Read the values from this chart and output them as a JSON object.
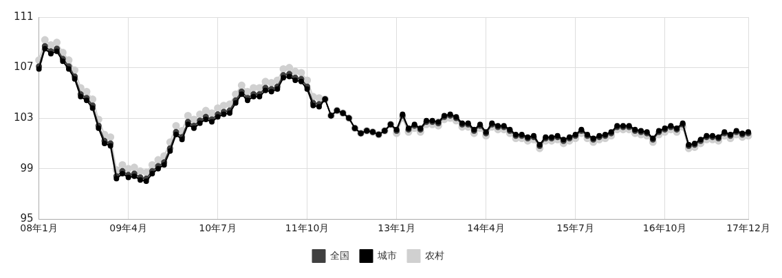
{
  "chart_data": {
    "type": "line",
    "categories": [
      "08年1月",
      null,
      null,
      null,
      null,
      null,
      null,
      null,
      null,
      null,
      null,
      null,
      null,
      null,
      null,
      "09年4月",
      null,
      null,
      null,
      null,
      null,
      null,
      null,
      null,
      null,
      null,
      null,
      null,
      null,
      null,
      "10年7月",
      null,
      null,
      null,
      null,
      null,
      null,
      null,
      null,
      null,
      null,
      null,
      null,
      null,
      null,
      "11年10月",
      null,
      null,
      null,
      null,
      null,
      null,
      null,
      null,
      null,
      null,
      null,
      null,
      null,
      null,
      "13年1月",
      null,
      null,
      null,
      null,
      null,
      null,
      null,
      null,
      null,
      null,
      null,
      null,
      null,
      null,
      "14年4月",
      null,
      null,
      null,
      null,
      null,
      null,
      null,
      null,
      null,
      null,
      null,
      null,
      null,
      null,
      "15年7月",
      null,
      null,
      null,
      null,
      null,
      null,
      null,
      null,
      null,
      null,
      null,
      null,
      null,
      null,
      "16年10月",
      null,
      null,
      null,
      null,
      null,
      null,
      null,
      null,
      null,
      null,
      null,
      null,
      null,
      "17年12月"
    ],
    "series": [
      {
        "name": "全国",
        "color": "#404040",
        "values": [
          107.1,
          108.7,
          108.3,
          108.5,
          107.7,
          107.1,
          106.3,
          104.9,
          104.6,
          104.0,
          102.4,
          101.2,
          101.0,
          98.4,
          98.8,
          98.5,
          98.6,
          98.3,
          98.2,
          98.8,
          99.2,
          99.5,
          100.6,
          101.9,
          101.5,
          102.7,
          102.4,
          102.8,
          103.1,
          102.9,
          103.3,
          103.5,
          103.6,
          104.4,
          105.1,
          104.6,
          104.9,
          104.9,
          105.4,
          105.3,
          105.5,
          106.4,
          106.5,
          106.2,
          106.1,
          105.5,
          104.2,
          104.1,
          104.5,
          103.2,
          103.6,
          103.4,
          103.0,
          102.2,
          101.8,
          102.0,
          101.9,
          101.7,
          102.0,
          102.5,
          102.0,
          103.2,
          102.1,
          102.4,
          102.1,
          102.7,
          102.7,
          102.6,
          103.1,
          103.2,
          103.0,
          102.5,
          102.5,
          102.0,
          102.4,
          101.8,
          102.5,
          102.3,
          102.3,
          102.0,
          101.6,
          101.6,
          101.4,
          101.5,
          100.8,
          101.4,
          101.4,
          101.5,
          101.2,
          101.4,
          101.6,
          102.0,
          101.6,
          101.3,
          101.5,
          101.6,
          101.8,
          102.3,
          102.3,
          102.3,
          102.0,
          101.9,
          101.8,
          101.3,
          101.9,
          102.1,
          102.3,
          102.1,
          102.5,
          100.8,
          100.9,
          101.2,
          101.5,
          101.5,
          101.4,
          101.8,
          101.6,
          101.9,
          101.7,
          101.8
        ]
      },
      {
        "name": "城市",
        "color": "#000000",
        "values": [
          106.9,
          108.5,
          108.1,
          108.3,
          107.5,
          106.9,
          106.1,
          104.7,
          104.4,
          103.8,
          102.2,
          101.0,
          100.8,
          98.2,
          98.6,
          98.3,
          98.4,
          98.1,
          98.0,
          98.6,
          99.0,
          99.3,
          100.4,
          101.7,
          101.3,
          102.5,
          102.2,
          102.6,
          102.9,
          102.7,
          103.1,
          103.3,
          103.4,
          104.2,
          104.9,
          104.4,
          104.7,
          104.7,
          105.2,
          105.1,
          105.3,
          106.2,
          106.3,
          106.0,
          105.9,
          105.3,
          104.0,
          103.9,
          104.5,
          103.2,
          103.6,
          103.4,
          103.0,
          102.2,
          101.8,
          102.0,
          101.9,
          101.7,
          102.0,
          102.5,
          102.1,
          103.3,
          102.2,
          102.5,
          102.2,
          102.8,
          102.8,
          102.7,
          103.2,
          103.3,
          103.1,
          102.6,
          102.6,
          102.1,
          102.5,
          101.9,
          102.6,
          102.4,
          102.4,
          102.1,
          101.7,
          101.7,
          101.5,
          101.6,
          100.9,
          101.5,
          101.5,
          101.6,
          101.3,
          101.5,
          101.7,
          102.1,
          101.7,
          101.4,
          101.6,
          101.7,
          101.9,
          102.4,
          102.4,
          102.4,
          102.1,
          102.0,
          101.9,
          101.4,
          102.0,
          102.2,
          102.4,
          102.2,
          102.6,
          100.9,
          101.0,
          101.3,
          101.6,
          101.6,
          101.5,
          101.9,
          101.7,
          102.0,
          101.8,
          101.9
        ]
      },
      {
        "name": "农村",
        "color": "#d0d0d0",
        "values": [
          107.6,
          109.2,
          108.8,
          109.0,
          108.2,
          107.6,
          106.8,
          105.4,
          105.1,
          104.5,
          102.9,
          101.7,
          101.5,
          98.9,
          99.3,
          99.0,
          99.1,
          98.8,
          98.7,
          99.3,
          99.7,
          100.0,
          101.1,
          102.4,
          102.0,
          103.2,
          102.9,
          103.3,
          103.6,
          103.4,
          103.8,
          104.0,
          104.1,
          104.9,
          105.6,
          105.1,
          105.4,
          105.4,
          105.9,
          105.8,
          106.0,
          106.9,
          107.0,
          106.7,
          106.6,
          106.0,
          104.7,
          104.6,
          104.5,
          103.2,
          103.6,
          103.4,
          103.0,
          102.2,
          101.8,
          102.0,
          101.9,
          101.7,
          102.0,
          102.5,
          101.8,
          103.0,
          101.9,
          102.2,
          101.9,
          102.5,
          102.5,
          102.4,
          102.9,
          103.0,
          102.8,
          102.3,
          102.3,
          101.8,
          102.2,
          101.6,
          102.3,
          102.1,
          102.1,
          101.8,
          101.4,
          101.4,
          101.2,
          101.3,
          100.6,
          101.2,
          101.2,
          101.3,
          101.0,
          101.2,
          101.4,
          101.8,
          101.4,
          101.1,
          101.3,
          101.4,
          101.6,
          102.1,
          102.1,
          102.1,
          101.8,
          101.7,
          101.6,
          101.1,
          101.7,
          101.9,
          102.1,
          101.9,
          102.3,
          100.6,
          100.7,
          101.0,
          101.3,
          101.3,
          101.2,
          101.6,
          101.4,
          101.7,
          101.5,
          101.6
        ]
      }
    ],
    "ylim": [
      95,
      111
    ],
    "yticks": [
      95,
      99,
      103,
      107,
      111
    ],
    "grid": true,
    "legend": "bottom",
    "marker": "circle",
    "line_style": "solid"
  }
}
